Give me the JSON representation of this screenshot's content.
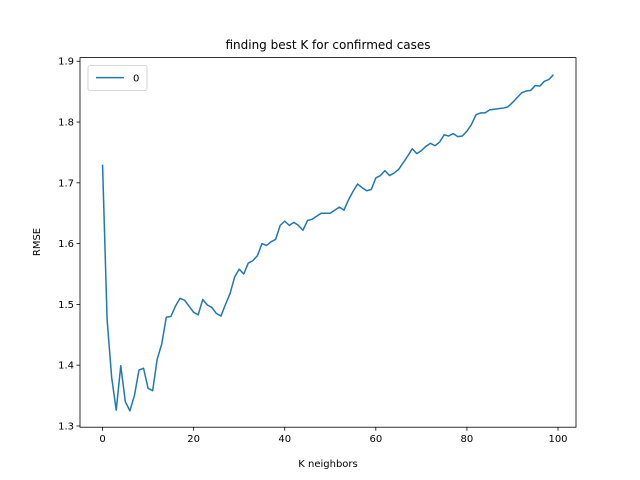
{
  "chart_data": {
    "type": "line",
    "title": "finding best K for confirmed cases",
    "xlabel": "K neighbors",
    "ylabel": "RMSE",
    "x": [
      0,
      1,
      2,
      3,
      4,
      5,
      6,
      7,
      8,
      9,
      10,
      11,
      12,
      13,
      14,
      15,
      16,
      17,
      18,
      19,
      20,
      21,
      22,
      23,
      24,
      25,
      26,
      27,
      28,
      29,
      30,
      31,
      32,
      33,
      34,
      35,
      36,
      37,
      38,
      39,
      40,
      41,
      42,
      43,
      44,
      45,
      46,
      47,
      48,
      49,
      50,
      51,
      52,
      53,
      54,
      55,
      56,
      57,
      58,
      59,
      60,
      61,
      62,
      63,
      64,
      65,
      66,
      67,
      68,
      69,
      70,
      71,
      72,
      73,
      74,
      75,
      76,
      77,
      78,
      79,
      80,
      81,
      82,
      83,
      84,
      85,
      86,
      87,
      88,
      89,
      90,
      91,
      92,
      93,
      94,
      95,
      96,
      97,
      98,
      99
    ],
    "series": [
      {
        "name": "0",
        "color": "#1f77b4",
        "values": [
          1.73,
          1.475,
          1.38,
          1.326,
          1.399,
          1.34,
          1.325,
          1.35,
          1.392,
          1.395,
          1.362,
          1.358,
          1.41,
          1.435,
          1.479,
          1.48,
          1.497,
          1.51,
          1.507,
          1.497,
          1.487,
          1.483,
          1.508,
          1.499,
          1.495,
          1.485,
          1.481,
          1.5,
          1.518,
          1.545,
          1.558,
          1.55,
          1.568,
          1.572,
          1.58,
          1.6,
          1.597,
          1.603,
          1.607,
          1.63,
          1.637,
          1.63,
          1.635,
          1.63,
          1.622,
          1.638,
          1.64,
          1.645,
          1.65,
          1.65,
          1.65,
          1.655,
          1.66,
          1.655,
          1.672,
          1.686,
          1.698,
          1.692,
          1.687,
          1.689,
          1.708,
          1.712,
          1.72,
          1.712,
          1.716,
          1.722,
          1.733,
          1.744,
          1.756,
          1.748,
          1.753,
          1.76,
          1.765,
          1.761,
          1.767,
          1.779,
          1.777,
          1.781,
          1.776,
          1.777,
          1.785,
          1.796,
          1.812,
          1.815,
          1.815,
          1.82,
          1.821,
          1.822,
          1.823,
          1.825,
          1.832,
          1.84,
          1.848,
          1.851,
          1.852,
          1.86,
          1.859,
          1.867,
          1.87,
          1.878
        ]
      }
    ],
    "xlim": [
      -4.95,
      103.95
    ],
    "xticks": [
      0,
      20,
      40,
      60,
      80,
      100
    ],
    "ylim": [
      1.298,
      1.906
    ],
    "yticks": [
      1.3,
      1.4,
      1.5,
      1.6,
      1.7,
      1.8,
      1.9
    ],
    "legend": "upper left",
    "grid": false
  }
}
